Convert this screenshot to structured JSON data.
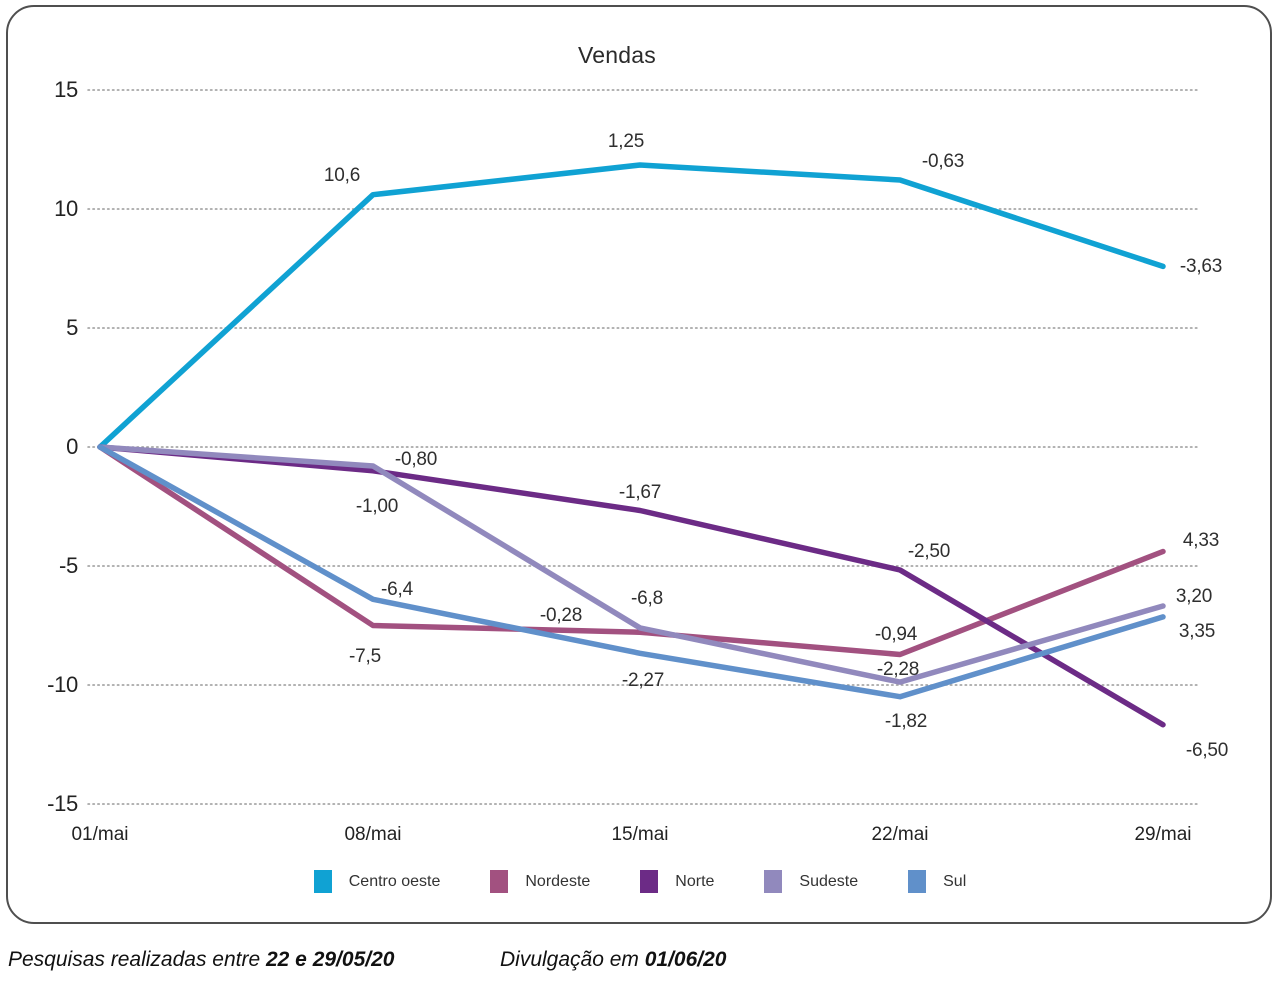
{
  "title": "Vendas",
  "footer": {
    "left_prefix": "Pesquisas realizadas entre ",
    "left_bold": "22 e 29/05/20",
    "right_prefix": "Divulgação em ",
    "right_bold": "01/06/20"
  },
  "chart_data": {
    "type": "line",
    "title": "Vendas",
    "x_categories": [
      "01/mai",
      "08/mai",
      "15/mai",
      "22/mai",
      "29/mai"
    ],
    "xlabel": "",
    "ylabel": "",
    "ylim": [
      -15,
      15
    ],
    "yticks": [
      15,
      10,
      5,
      0,
      -5,
      -10,
      -15
    ],
    "grid": "horizontal-dotted",
    "gridline_color": "#999999",
    "legend_position": "bottom",
    "note": "Point labels show the change versus the previous week; plotted line values are the cumulative totals starting from 0 on 01/mai.",
    "series": [
      {
        "name": "Centro oeste",
        "color": "#10a2d3",
        "values": [
          0,
          10.6,
          11.85,
          11.22,
          7.59
        ],
        "point_labels": [
          null,
          "10,6",
          "1,25",
          "-0,63",
          "-3,63"
        ],
        "label_offsets": [
          null,
          [
            -31,
            -19
          ],
          [
            -14,
            -23
          ],
          [
            43,
            -18
          ],
          [
            38,
            1
          ]
        ]
      },
      {
        "name": "Nordeste",
        "color": "#a25180",
        "values": [
          0,
          -7.5,
          -7.78,
          -8.72,
          -4.39
        ],
        "point_labels": [
          null,
          "-7,5",
          "-0,28",
          "-0,94",
          "4,33"
        ],
        "label_offsets": [
          null,
          [
            -8,
            31
          ],
          [
            -79,
            -16
          ],
          [
            -4,
            -20
          ],
          [
            38,
            -10
          ]
        ]
      },
      {
        "name": "Norte",
        "color": "#6c2b86",
        "values": [
          0,
          -1.0,
          -2.67,
          -5.17,
          -11.67
        ],
        "point_labels": [
          null,
          "-1,00",
          "-1,67",
          "-2,50",
          "-6,50"
        ],
        "label_offsets": [
          null,
          [
            4,
            36
          ],
          [
            0,
            -18
          ],
          [
            29,
            -18
          ],
          [
            44,
            26
          ]
        ]
      },
      {
        "name": "Sudeste",
        "color": "#9189bd",
        "values": [
          0,
          -0.8,
          -7.6,
          -9.88,
          -6.68
        ],
        "point_labels": [
          null,
          "-0,80",
          "-6,8",
          "-2,28",
          "3,20"
        ],
        "label_offsets": [
          null,
          [
            43,
            -6
          ],
          [
            7,
            -29
          ],
          [
            -2,
            -12
          ],
          [
            31,
            -9
          ]
        ]
      },
      {
        "name": "Sul",
        "color": "#6090ca",
        "values": [
          0,
          -6.4,
          -8.67,
          -10.49,
          -7.14
        ],
        "point_labels": [
          null,
          "-6,4",
          "-2,27",
          "-1,82",
          "3,35"
        ],
        "label_offsets": [
          null,
          [
            24,
            -9
          ],
          [
            3,
            28
          ],
          [
            6,
            25
          ],
          [
            34,
            15
          ]
        ]
      }
    ]
  }
}
